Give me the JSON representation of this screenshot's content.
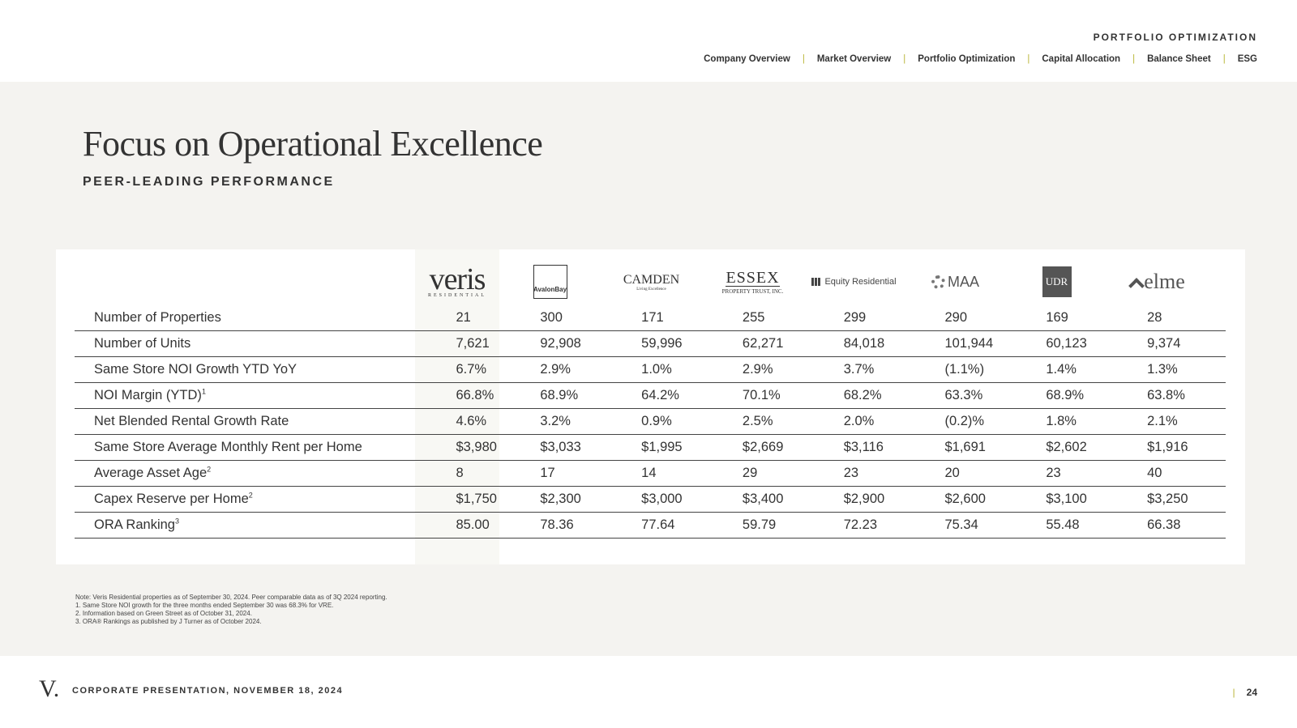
{
  "header": {
    "section": "PORTFOLIO OPTIMIZATION",
    "nav": [
      "Company Overview",
      "Market Overview",
      "Portfolio Optimization",
      "Capital Allocation",
      "Balance Sheet",
      "ESG"
    ]
  },
  "main": {
    "title": "Focus on Operational Excellence",
    "subtitle": "PEER-LEADING PERFORMANCE"
  },
  "logos": {
    "veris": {
      "name": "veris",
      "tagline": "RESIDENTIAL"
    },
    "avalon": {
      "name": "AvalonBay"
    },
    "camden": {
      "name": "CAMDEN",
      "tagline": "Living Excellence"
    },
    "essex": {
      "name": "ESSEX",
      "tagline": "PROPERTY TRUST, INC."
    },
    "eqr": {
      "name": "Equity Residential"
    },
    "maa": {
      "name": "MAA"
    },
    "udr": {
      "name": "UDR"
    },
    "elme": {
      "name": "elme"
    }
  },
  "table": {
    "rows": [
      {
        "metric": "Number of Properties",
        "sup": "",
        "values": [
          "21",
          "300",
          "171",
          "255",
          "299",
          "290",
          "169",
          "28"
        ]
      },
      {
        "metric": "Number of Units",
        "sup": "",
        "values": [
          "7,621",
          "92,908",
          "59,996",
          "62,271",
          "84,018",
          "101,944",
          "60,123",
          "9,374"
        ]
      },
      {
        "metric": "Same Store NOI Growth YTD YoY",
        "sup": "",
        "values": [
          "6.7%",
          "2.9%",
          "1.0%",
          "2.9%",
          "3.7%",
          "(1.1%)",
          "1.4%",
          "1.3%"
        ]
      },
      {
        "metric": "NOI Margin (YTD)",
        "sup": "1",
        "values": [
          "66.8%",
          "68.9%",
          "64.2%",
          "70.1%",
          "68.2%",
          "63.3%",
          "68.9%",
          "63.8%"
        ]
      },
      {
        "metric": "Net Blended Rental Growth Rate",
        "sup": "",
        "values": [
          "4.6%",
          "3.2%",
          "0.9%",
          "2.5%",
          "2.0%",
          "(0.2)%",
          "1.8%",
          "2.1%"
        ]
      },
      {
        "metric": "Same Store Average Monthly Rent per Home",
        "sup": "",
        "values": [
          "$3,980",
          "$3,033",
          "$1,995",
          "$2,669",
          "$3,116",
          "$1,691",
          "$2,602",
          "$1,916"
        ]
      },
      {
        "metric": "Average Asset Age",
        "sup": "2",
        "values": [
          "8",
          "17",
          "14",
          "29",
          "23",
          "20",
          "23",
          "40"
        ]
      },
      {
        "metric": "Capex Reserve per Home",
        "sup": "2",
        "values": [
          "$1,750",
          "$2,300",
          "$3,000",
          "$3,400",
          "$2,900",
          "$2,600",
          "$3,100",
          "$3,250"
        ]
      },
      {
        "metric": "ORA Ranking",
        "sup": "3",
        "values": [
          "85.00",
          "78.36",
          "77.64",
          "59.79",
          "72.23",
          "75.34",
          "55.48",
          "66.38"
        ]
      }
    ]
  },
  "notes": [
    "Note: Veris Residential properties as of September 30, 2024. Peer comparable data as of 3Q 2024 reporting.",
    "1.  Same Store NOI growth for the three months ended September 30 was 68.3% for VRE.",
    "2.  Information based on Green Street as of October 31, 2024.",
    "3.  ORA® Rankings as published by J Turner as of  October 2024."
  ],
  "footer": {
    "logo": "V.",
    "text": "CORPORATE PRESENTATION, NOVEMBER 18, 2024",
    "page": "24"
  }
}
